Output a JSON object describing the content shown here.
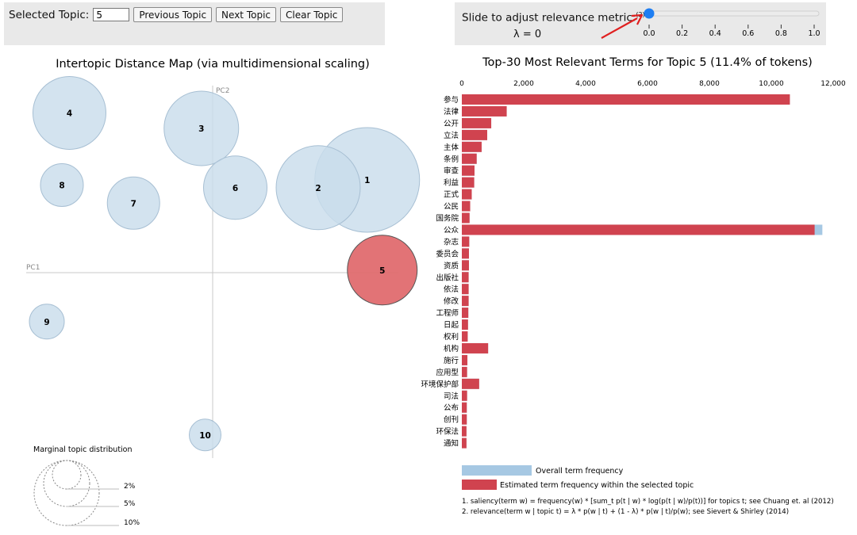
{
  "topic_controls": {
    "selected_label": "Selected Topic:",
    "selected_value": "5",
    "prev_label": "Previous Topic",
    "next_label": "Next Topic",
    "clear_label": "Clear Topic"
  },
  "slider": {
    "title": "Slide to adjust relevance metric:",
    "footnote_ref": "(2)",
    "lambda_text": "λ = 0",
    "value": 0,
    "ticks": [
      "0.0",
      "0.2",
      "0.4",
      "0.6",
      "0.8",
      "1.0"
    ]
  },
  "left_panel": {
    "title": "Intertopic Distance Map (via multidimensional scaling)",
    "axis_pc1": "PC1",
    "axis_pc2": "PC2",
    "marginal_title": "Marginal topic distribution",
    "marginal_labels": [
      "2%",
      "5%",
      "10%"
    ]
  },
  "right_panel": {
    "title": "Top-30 Most Relevant Terms for Topic 5 (11.4% of tokens)",
    "legend_overall": "Overall term frequency",
    "legend_selected": "Estimated term frequency within the selected topic",
    "footnote1": "1. saliency(term w) = frequency(w) * [sum_t p(t | w) * log(p(t | w)/p(t))] for topics t; see Chuang et. al (2012)",
    "footnote2": "2. relevance(term w | topic t) = λ * p(w | t) + (1 - λ) * p(w | t)/p(w); see Sievert & Shirley (2014)"
  },
  "colors": {
    "topic_fill": "#c9ddec",
    "topic_stroke": "#a7bfd3",
    "selected_fill": "#e06c6f",
    "selected_stroke": "#555555",
    "bar_overall": "#a6c8e3",
    "bar_selected": "#d0434f",
    "annotation_arrow": "#e02020"
  },
  "chart_data": [
    {
      "type": "scatter",
      "title": "Intertopic Distance Map (via multidimensional scaling)",
      "xlabel": "PC1",
      "ylabel": "PC2",
      "selected_topic": 5,
      "topics": [
        {
          "id": "1",
          "x": 0.41,
          "y": 0.36,
          "r": 66
        },
        {
          "id": "2",
          "x": 0.28,
          "y": 0.33,
          "r": 53
        },
        {
          "id": "3",
          "x": -0.03,
          "y": 0.56,
          "r": 47
        },
        {
          "id": "4",
          "x": -0.38,
          "y": 0.62,
          "r": 46
        },
        {
          "id": "5",
          "x": 0.45,
          "y": 0.01,
          "r": 44
        },
        {
          "id": "6",
          "x": 0.06,
          "y": 0.33,
          "r": 40
        },
        {
          "id": "7",
          "x": -0.21,
          "y": 0.27,
          "r": 33
        },
        {
          "id": "8",
          "x": -0.4,
          "y": 0.34,
          "r": 27
        },
        {
          "id": "9",
          "x": -0.44,
          "y": -0.19,
          "r": 22
        },
        {
          "id": "10",
          "x": -0.02,
          "y": -0.63,
          "r": 20
        }
      ]
    },
    {
      "type": "bar",
      "orientation": "horizontal",
      "title": "Top-30 Most Relevant Terms for Topic 5 (11.4% of tokens)",
      "xlim": [
        0,
        12000
      ],
      "xticks": [
        "0",
        "2,000",
        "4,000",
        "6,000",
        "8,000",
        "10,000",
        "12,000"
      ],
      "categories": [
        "参与",
        "法律",
        "公开",
        "立法",
        "主体",
        "条例",
        "审查",
        "利益",
        "正式",
        "公民",
        "国务院",
        "公众",
        "杂志",
        "委员会",
        "资质",
        "出版社",
        "依法",
        "修改",
        "工程师",
        "日起",
        "权利",
        "机构",
        "施行",
        "应用型",
        "环境保护部",
        "司法",
        "公布",
        "创刊",
        "环保法",
        "通知"
      ],
      "series": [
        {
          "name": "Overall term frequency",
          "values": [
            10600,
            1450,
            950,
            820,
            640,
            480,
            410,
            400,
            320,
            270,
            250,
            11650,
            240,
            230,
            230,
            220,
            220,
            220,
            210,
            200,
            190,
            850,
            180,
            170,
            560,
            170,
            160,
            160,
            150,
            150
          ]
        },
        {
          "name": "Estimated term frequency within the selected topic",
          "values": [
            10600,
            1450,
            950,
            820,
            640,
            480,
            410,
            400,
            320,
            270,
            250,
            11400,
            240,
            230,
            230,
            220,
            220,
            220,
            210,
            200,
            190,
            850,
            180,
            170,
            560,
            170,
            160,
            160,
            150,
            150
          ]
        }
      ]
    }
  ]
}
